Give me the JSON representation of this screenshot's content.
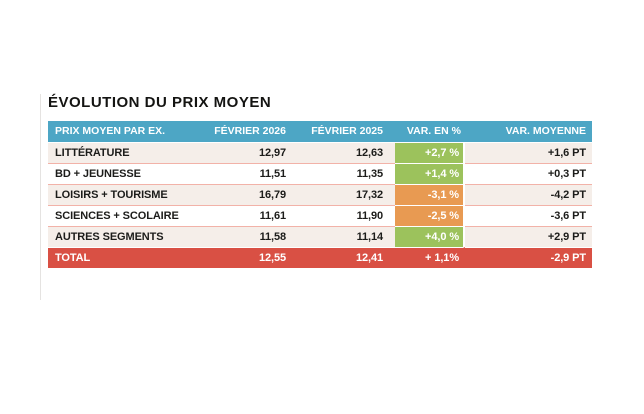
{
  "title": "ÉVOLUTION DU PRIX MOYEN",
  "table": {
    "columns": [
      "PRIX MOYEN PAR EX.",
      "FÉVRIER 2026",
      "FÉVRIER 2025",
      "VAR. EN %",
      "VAR. MOYENNE"
    ],
    "rows": [
      {
        "label": "LITTÉRATURE",
        "feb2026": "12,97",
        "feb2025": "12,63",
        "var_pct": "+2,7 %",
        "trend": "up",
        "var_moyenne": "+1,6 PT"
      },
      {
        "label": "BD + JEUNESSE",
        "feb2026": "11,51",
        "feb2025": "11,35",
        "var_pct": "+1,4 %",
        "trend": "up",
        "var_moyenne": "+0,3 PT"
      },
      {
        "label": "LOISIRS + TOURISME",
        "feb2026": "16,79",
        "feb2025": "17,32",
        "var_pct": "-3,1 %",
        "trend": "down",
        "var_moyenne": "-4,2 PT"
      },
      {
        "label": "SCIENCES + SCOLAIRE",
        "feb2026": "11,61",
        "feb2025": "11,90",
        "var_pct": "-2,5 %",
        "trend": "down",
        "var_moyenne": "-3,6 PT"
      },
      {
        "label": "AUTRES SEGMENTS",
        "feb2026": "11,58",
        "feb2025": "11,14",
        "var_pct": "+4,0 %",
        "trend": "up",
        "var_moyenne": "+2,9 PT"
      }
    ],
    "total": {
      "label": "TOTAL",
      "feb2026": "12,55",
      "feb2025": "12,41",
      "var_pct": "+ 1,1%",
      "var_moyenne": "-2,9 PT"
    }
  },
  "colors": {
    "header_bg": "#4DA6C5",
    "total_bg": "#D95044",
    "positive_bg": "#9CC25C",
    "negative_bg": "#E89A52",
    "row_alt_bg": "#F5EEE9",
    "row_bg": "#FFFFFF",
    "separator": "#F2B2A8",
    "text": "#1C1C1A"
  },
  "chart_data": {
    "type": "table",
    "title": "ÉVOLUTION DU PRIX MOYEN",
    "columns": [
      "PRIX MOYEN PAR EX.",
      "FÉVRIER 2026",
      "FÉVRIER 2025",
      "VAR. EN %",
      "VAR. MOYENNE"
    ],
    "rows": [
      [
        "LITTÉRATURE",
        12.97,
        12.63,
        "+2,7 %",
        "+1,6 PT"
      ],
      [
        "BD + JEUNESSE",
        11.51,
        11.35,
        "+1,4 %",
        "+0,3 PT"
      ],
      [
        "LOISIRS + TOURISME",
        16.79,
        17.32,
        "-3,1 %",
        "-4,2 PT"
      ],
      [
        "SCIENCES + SCOLAIRE",
        11.61,
        11.9,
        "-2,5 %",
        "-3,6 PT"
      ],
      [
        "AUTRES SEGMENTS",
        11.58,
        11.14,
        "+4,0 %",
        "+2,9 PT"
      ],
      [
        "TOTAL",
        12.55,
        12.41,
        "+ 1,1%",
        "-2,9 PT"
      ]
    ],
    "notes": "Cell color coding: positive VAR. EN % green, negative orange, TOTAL row red, header row blue"
  }
}
